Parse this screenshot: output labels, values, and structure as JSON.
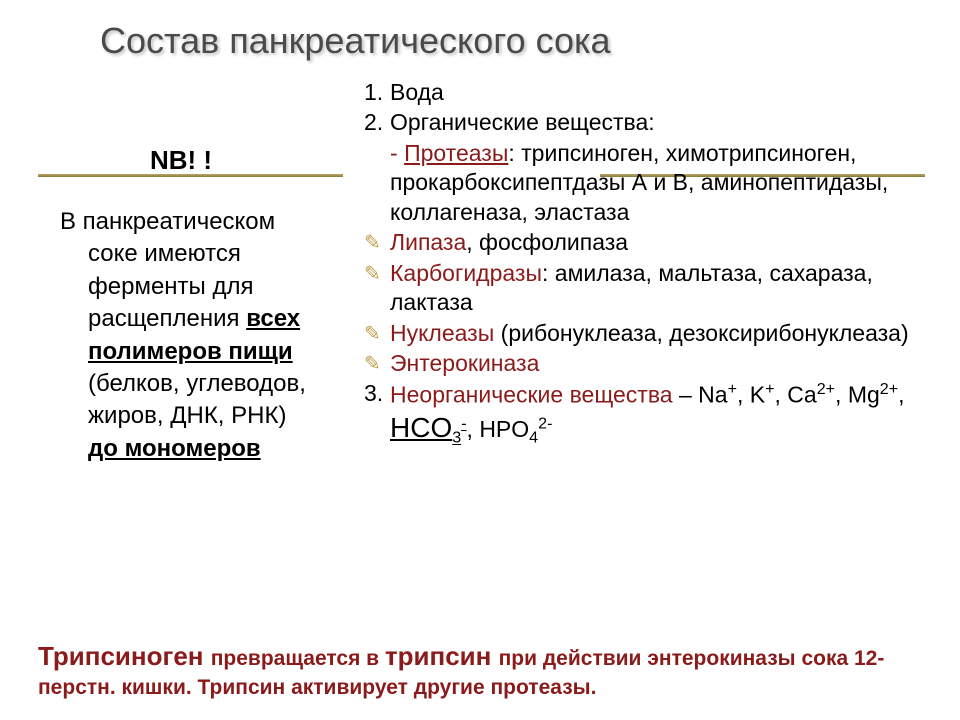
{
  "title": "Состав панкреатического сока",
  "left": {
    "nb": "NB! !",
    "line1": "В  панкреатическом",
    "line2": "соке имеются",
    "line3": "ферменты для",
    "line4": "расщепления ",
    "line4b": "всех",
    "line5": "полимеров пищи",
    "line6": "(белков, углеводов,",
    "line7": "жиров, ДНК, РНК)",
    "line8": "до мономеров"
  },
  "right": {
    "r1": "Вода",
    "r2": "Органические вещества:",
    "r3a": "Протеазы",
    "r3b": ": трипсиноген, химотрипсиноген, прокарбоксипептдазы А и В, аминопептидазы, коллагеназа, эластаза",
    "r4a": "Липаза",
    "r4b": ", фосфолипаза",
    "r5a": "Карбогидразы",
    "r5b": ": амилаза, мальтаза, сахараза, лактаза",
    "r6a": "Нуклеазы",
    "r6b": " (рибонуклеаза, дезоксирибонуклеаза)",
    "r7": "Энтерокиназа",
    "r8a": "Неорганические вещества",
    "r8b": " – Na",
    "r8c": ", K",
    "r8d": ", Ca",
    "r8e": ", Mg",
    "r8f": ", ",
    "r8g": "HCO",
    "r8h": ", HPO"
  },
  "footer": {
    "f1": "Трипсиноген ",
    "f2": "превращается в ",
    "f3": "трипсин ",
    "f4": "при действии энтерокиназы сока 12-перстн. кишки. Трипсин активирует другие протеазы."
  },
  "colors": {
    "title": "#4a4a4a",
    "maroon": "#8b1a1a",
    "bullet": "#c0a050",
    "rule": "#a08a40"
  }
}
